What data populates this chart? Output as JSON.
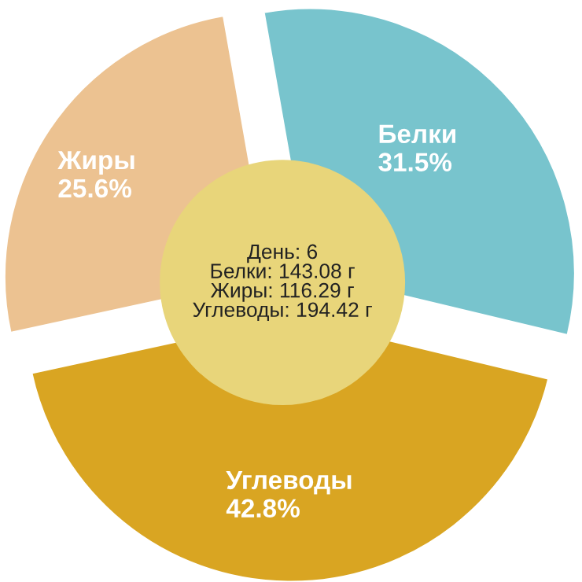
{
  "chart_data": {
    "type": "pie",
    "categories": [
      "Белки",
      "Углеводы",
      "Жиры"
    ],
    "values": [
      31.5,
      42.8,
      25.6
    ],
    "colors": [
      "#78c4cd",
      "#d9a522",
      "#ecc291"
    ],
    "value_labels": [
      "31.5%",
      "42.8%",
      "25.6%"
    ],
    "annotations": [
      "День: 6",
      "Белки: 143.08 г",
      "Жиры: 116.29 г",
      "Углеводы: 194.42 г"
    ]
  }
}
